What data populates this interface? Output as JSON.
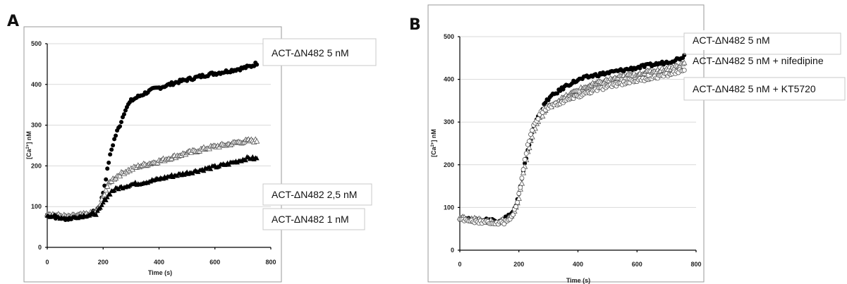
{
  "chart_data": [
    {
      "panel_label": "A",
      "type": "scatter",
      "xlabel": "Time (s)",
      "ylabel": "[Ca2+] nM",
      "ylabel_base": "[Ca",
      "ylabel_sup": "2+",
      "ylabel_rest": "] nM",
      "xlim": [
        0,
        800
      ],
      "ylim": [
        0,
        500
      ],
      "xticks": [
        0,
        200,
        400,
        600,
        800
      ],
      "yticks": [
        0,
        100,
        200,
        300,
        400,
        500
      ],
      "grid": "horizontal",
      "legend_placement": "right, labels beside curves",
      "series": [
        {
          "name": "ACT-ΔN482  5 nM",
          "marker": "filled-circle",
          "x": [
            0,
            25,
            50,
            75,
            100,
            125,
            150,
            175,
            190,
            200,
            210,
            220,
            230,
            240,
            250,
            260,
            270,
            280,
            290,
            300,
            320,
            340,
            360,
            380,
            400,
            430,
            460,
            490,
            520,
            550,
            580,
            610,
            640,
            670,
            700,
            730,
            750
          ],
          "y": [
            80,
            75,
            72,
            70,
            75,
            78,
            80,
            90,
            105,
            135,
            170,
            210,
            240,
            265,
            285,
            300,
            320,
            340,
            350,
            360,
            368,
            375,
            382,
            388,
            392,
            398,
            405,
            410,
            415,
            420,
            425,
            428,
            432,
            436,
            440,
            445,
            452
          ]
        },
        {
          "name": "ACT-ΔN482  2,5 nM",
          "marker": "open-triangle",
          "x": [
            0,
            25,
            50,
            75,
            100,
            125,
            150,
            175,
            190,
            200,
            215,
            230,
            250,
            275,
            300,
            330,
            360,
            400,
            440,
            480,
            520,
            560,
            600,
            640,
            680,
            720,
            750
          ],
          "y": [
            85,
            80,
            78,
            75,
            78,
            80,
            82,
            88,
            105,
            125,
            150,
            165,
            175,
            185,
            192,
            200,
            205,
            212,
            220,
            228,
            235,
            242,
            248,
            252,
            258,
            262,
            262
          ]
        },
        {
          "name": "ACT-ΔN482  1 nM",
          "marker": "filled-triangle",
          "x": [
            0,
            25,
            50,
            75,
            100,
            125,
            150,
            175,
            190,
            200,
            215,
            230,
            250,
            275,
            300,
            330,
            360,
            400,
            440,
            480,
            520,
            560,
            600,
            640,
            680,
            720,
            750
          ],
          "y": [
            80,
            76,
            74,
            72,
            75,
            78,
            80,
            84,
            95,
            110,
            125,
            138,
            145,
            150,
            155,
            158,
            162,
            168,
            175,
            180,
            186,
            192,
            198,
            204,
            212,
            220,
            218
          ]
        }
      ]
    },
    {
      "panel_label": "B",
      "type": "scatter",
      "xlabel": "Time (s)",
      "ylabel": "[Ca2+] nM",
      "ylabel_base": "[Ca",
      "ylabel_sup": "2+",
      "ylabel_rest": "] nM",
      "xlim": [
        0,
        800
      ],
      "ylim": [
        0,
        500
      ],
      "xticks": [
        0,
        200,
        400,
        600,
        800
      ],
      "yticks": [
        0,
        100,
        200,
        300,
        400,
        500
      ],
      "grid": "horizontal",
      "legend_placement": "top-right, labels beside curves",
      "series": [
        {
          "name": "ACT-ΔN482 5 nM",
          "marker": "filled-circle",
          "x": [
            0,
            25,
            50,
            75,
            100,
            125,
            150,
            165,
            180,
            190,
            200,
            210,
            220,
            230,
            240,
            250,
            260,
            270,
            280,
            290,
            300,
            320,
            340,
            360,
            380,
            400,
            430,
            460,
            500,
            540,
            580,
            620,
            660,
            700,
            740,
            760
          ],
          "y": [
            75,
            72,
            70,
            70,
            72,
            68,
            75,
            80,
            90,
            105,
            130,
            165,
            200,
            235,
            260,
            285,
            305,
            320,
            332,
            345,
            355,
            365,
            375,
            385,
            392,
            398,
            405,
            410,
            415,
            420,
            425,
            430,
            435,
            440,
            448,
            455
          ]
        },
        {
          "name": "ACT-ΔN482 5 nM + nifedipine",
          "marker": "open-triangle",
          "x": [
            0,
            25,
            50,
            75,
            100,
            125,
            150,
            165,
            180,
            190,
            200,
            210,
            220,
            230,
            240,
            250,
            260,
            270,
            280,
            290,
            300,
            320,
            340,
            360,
            380,
            400,
            430,
            460,
            500,
            540,
            580,
            620,
            660,
            700,
            740,
            760
          ],
          "y": [
            80,
            75,
            72,
            70,
            68,
            65,
            70,
            75,
            85,
            100,
            125,
            160,
            195,
            230,
            255,
            278,
            295,
            308,
            318,
            328,
            335,
            345,
            352,
            360,
            368,
            375,
            383,
            390,
            398,
            405,
            410,
            415,
            420,
            425,
            432,
            438
          ]
        },
        {
          "name": "ACT-ΔN482 5 nM + KT5720",
          "marker": "open-circle",
          "x": [
            0,
            25,
            50,
            75,
            100,
            125,
            150,
            165,
            180,
            190,
            200,
            210,
            220,
            230,
            240,
            250,
            260,
            270,
            280,
            290,
            300,
            320,
            340,
            360,
            380,
            400,
            430,
            460,
            500,
            540,
            580,
            620,
            660,
            700,
            740,
            760
          ],
          "y": [
            72,
            70,
            68,
            66,
            65,
            62,
            65,
            72,
            85,
            100,
            130,
            170,
            210,
            245,
            270,
            290,
            305,
            318,
            325,
            330,
            335,
            340,
            345,
            350,
            355,
            360,
            368,
            375,
            382,
            390,
            395,
            400,
            405,
            410,
            418,
            425
          ]
        }
      ]
    }
  ]
}
